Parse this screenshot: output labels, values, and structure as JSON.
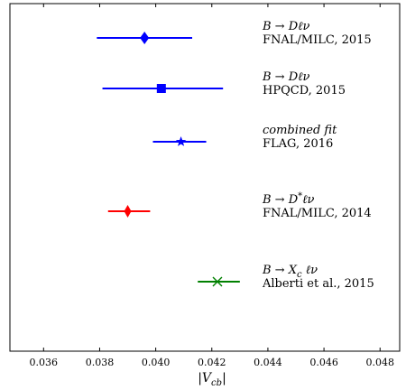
{
  "chart_data": {
    "type": "scatter",
    "subtype": "horizontal-error-bar",
    "xlabel": "|V_cb|",
    "xlim": [
      0.0348,
      0.0487
    ],
    "xticks": [
      0.036,
      0.038,
      0.04,
      0.042,
      0.044,
      0.046,
      0.048
    ],
    "xtick_labels": [
      "0.036",
      "0.038",
      "0.040",
      "0.042",
      "0.044",
      "0.046",
      "0.048"
    ],
    "grid": false,
    "series": [
      {
        "process": "B → Dℓν",
        "source": "FNAL/MILC, 2015",
        "value": 0.0396,
        "lower": 0.0379,
        "upper": 0.0413,
        "marker": "diamond",
        "color": "#0000ff"
      },
      {
        "process": "B → Dℓν",
        "source": "HPQCD, 2015",
        "value": 0.0402,
        "lower": 0.0381,
        "upper": 0.0424,
        "marker": "square",
        "color": "#0000ff"
      },
      {
        "process": "combined fit",
        "source": "FLAG, 2016",
        "value": 0.0409,
        "lower": 0.0399,
        "upper": 0.0418,
        "marker": "star",
        "color": "#0000ff"
      },
      {
        "process": "B → D*ℓν",
        "source": "FNAL/MILC, 2014",
        "value": 0.039,
        "lower": 0.0383,
        "upper": 0.0398,
        "marker": "thin-diamond",
        "color": "#ff0000"
      },
      {
        "process": "B → X_c ℓν",
        "source": "Alberti et al., 2015",
        "value": 0.0422,
        "lower": 0.0415,
        "upper": 0.043,
        "marker": "x",
        "color": "#008000"
      }
    ]
  }
}
